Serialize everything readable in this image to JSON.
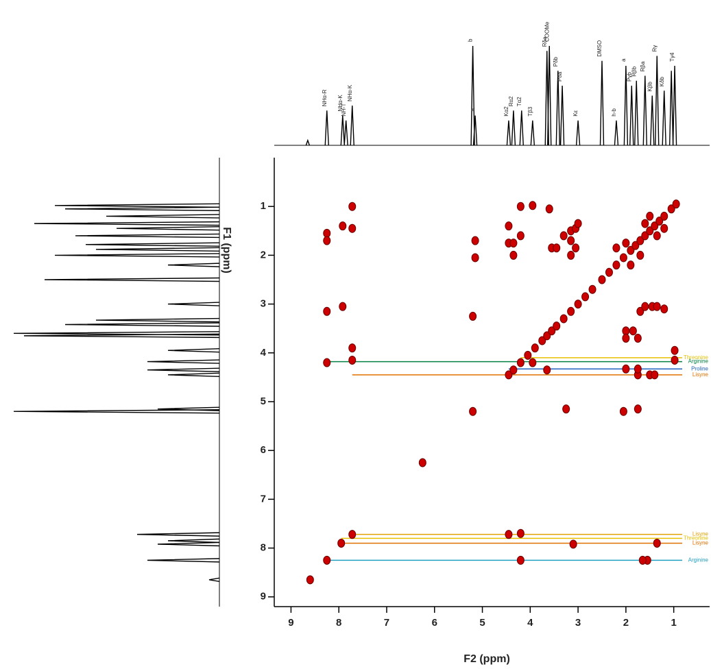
{
  "chart_data": {
    "type": "nmr2d",
    "xlabel": "F2 (ppm)",
    "ylabel": "F1 (ppm)",
    "xlim": [
      9.35,
      0.25
    ],
    "ylim": [
      0,
      9.2
    ],
    "xticks": [
      1,
      2,
      3,
      4,
      5,
      6,
      7,
      8,
      9
    ],
    "yticks": [
      1,
      2,
      3,
      4,
      5,
      6,
      7,
      8,
      9
    ],
    "color": "#cc0000",
    "x": [
      8.25,
      8.25,
      8.25,
      8.25,
      7.92,
      7.92,
      7.72,
      7.72,
      7.72,
      7.72,
      5.15,
      5.15,
      5.2,
      5.2,
      4.45,
      4.45,
      4.35,
      4.35,
      4.2,
      4.2,
      3.95,
      3.95,
      3.6,
      3.55,
      3.45,
      3.3,
      3.15,
      3.15,
      3.15,
      3.05,
      3.05,
      3.0,
      3.25,
      2.0,
      2.0,
      1.85,
      1.75,
      1.7,
      1.6,
      1.45,
      1.35,
      1.2,
      2.05,
      1.75,
      0.98,
      0.98,
      8.6,
      8.25,
      7.95,
      7.72,
      4.2,
      4.45,
      3.1,
      1.35,
      1.55,
      1.65,
      4.2,
      3.65,
      6.25,
      1.75,
      1.5,
      1.4,
      2.0,
      1.75,
      1.6,
      1.35,
      1.5,
      1.2,
      2.2,
      1.9,
      1.7,
      2.0,
      4.45,
      4.35,
      4.2,
      4.05,
      3.9,
      3.75,
      3.65,
      3.55,
      3.45,
      3.3,
      3.15,
      3.0,
      2.85,
      2.7,
      2.5,
      2.35,
      2.2,
      2.05,
      1.9,
      1.8,
      1.7,
      1.6,
      1.5,
      1.4,
      1.3,
      1.2,
      1.05,
      0.95
    ],
    "y": [
      1.55,
      1.7,
      3.15,
      4.2,
      1.4,
      3.05,
      1.45,
      1.0,
      3.9,
      4.15,
      1.7,
      2.05,
      3.25,
      5.2,
      1.4,
      1.75,
      1.75,
      2.0,
      1.6,
      1.0,
      0.98,
      4.2,
      1.05,
      1.85,
      1.85,
      1.6,
      1.7,
      1.5,
      2.0,
      1.85,
      1.45,
      1.35,
      5.15,
      3.55,
      3.7,
      3.55,
      3.7,
      3.15,
      3.05,
      3.05,
      3.05,
      3.1,
      5.2,
      5.15,
      3.95,
      4.15,
      8.65,
      8.25,
      7.9,
      7.72,
      7.7,
      7.72,
      7.92,
      7.9,
      8.25,
      8.25,
      8.25,
      4.35,
      6.25,
      4.45,
      4.45,
      4.45,
      4.33,
      4.33,
      1.35,
      1.6,
      1.2,
      1.45,
      1.85,
      2.2,
      2.0,
      1.75,
      4.45,
      4.35,
      4.2,
      4.05,
      3.9,
      3.75,
      3.65,
      3.55,
      3.45,
      3.3,
      3.15,
      3.0,
      2.85,
      2.7,
      2.5,
      2.35,
      2.2,
      2.05,
      1.9,
      1.8,
      1.7,
      1.6,
      1.5,
      1.4,
      1.3,
      1.2,
      1.05,
      0.95
    ],
    "projection": {
      "x": [
        8.65,
        8.25,
        7.92,
        7.85,
        7.72,
        5.2,
        5.15,
        4.45,
        4.35,
        4.18,
        3.95,
        3.65,
        3.6,
        3.42,
        3.33,
        3.0,
        2.5,
        2.2,
        2.0,
        1.88,
        1.78,
        1.6,
        1.45,
        1.35,
        1.2,
        1.05,
        0.98
      ],
      "heights": [
        5,
        35,
        30,
        25,
        40,
        100,
        30,
        25,
        35,
        35,
        25,
        95,
        100,
        75,
        60,
        25,
        85,
        25,
        80,
        60,
        65,
        70,
        50,
        90,
        55,
        75,
        80
      ],
      "labels": [
        null,
        "NHα-R",
        "NHα-K",
        "NH-T",
        "NHα-K",
        "b",
        "a",
        "Kα2",
        "Rα2",
        "Tα2",
        "Tβ3",
        "Rδa",
        "COOMe",
        "Pδb",
        "Pδa",
        "Kε",
        "DMSO",
        "h-b",
        "a",
        "Pγb",
        "Rβb",
        "Rβa",
        "Kβb",
        "Rγ",
        "Kδb",
        null,
        "Tγ4"
      ]
    },
    "guides": [
      {
        "name": "Threonine",
        "color": "#e8c000",
        "x": 4.2,
        "y": 4.1
      },
      {
        "name": "Arginine",
        "color": "#008040",
        "x": 8.25,
        "y": 4.18
      },
      {
        "name": "Proline",
        "color": "#2060c0",
        "x": 4.45,
        "y": 4.33
      },
      {
        "name": "Lisyne",
        "color": "#e07000",
        "x": 7.72,
        "y": 4.45
      },
      {
        "name": "Lisyne",
        "color": "#e0a000",
        "x": 7.72,
        "y": 7.72
      },
      {
        "name": "Threonine",
        "color": "#e8c000",
        "x": 7.95,
        "y": 7.8
      },
      {
        "name": "Lisyne",
        "color": "#e07000",
        "x": 7.95,
        "y": 7.9
      },
      {
        "name": "Arginine",
        "color": "#20a0c0",
        "x": 8.25,
        "y": 8.25
      }
    ]
  }
}
